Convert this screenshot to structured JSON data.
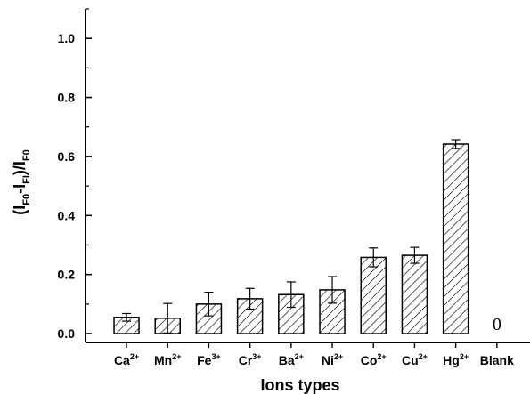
{
  "chart_data": {
    "type": "bar",
    "categories": [
      {
        "base": "Ca",
        "sup": "2+"
      },
      {
        "base": "Mn",
        "sup": "2+"
      },
      {
        "base": "Fe",
        "sup": "3+"
      },
      {
        "base": "Cr",
        "sup": "3+"
      },
      {
        "base": "Ba",
        "sup": "2+"
      },
      {
        "base": "Ni",
        "sup": "2+"
      },
      {
        "base": "Co",
        "sup": "2+"
      },
      {
        "base": "Cu",
        "sup": "2+"
      },
      {
        "base": "Hg",
        "sup": "2+"
      },
      {
        "base": "Blank",
        "sup": ""
      }
    ],
    "values": [
      0.055,
      0.052,
      0.1,
      0.118,
      0.132,
      0.148,
      0.258,
      0.265,
      0.642,
      0
    ],
    "errors": [
      0.013,
      0.05,
      0.04,
      0.035,
      0.043,
      0.045,
      0.032,
      0.027,
      0.015,
      0
    ],
    "data_labels": [
      "",
      "",
      "",
      "",
      "",
      "",
      "",
      "",
      "",
      "0"
    ],
    "xlabel": "Ions types",
    "ylabel": {
      "parts": [
        {
          "t": "(I",
          "sub": false
        },
        {
          "t": "F0",
          "sub": true
        },
        {
          "t": "-I",
          "sub": false
        },
        {
          "t": "FI",
          "sub": true
        },
        {
          "t": ")/I",
          "sub": false
        },
        {
          "t": "F0",
          "sub": true
        }
      ]
    },
    "ylim": [
      -0.03,
      1.1
    ],
    "yticks": [
      0.0,
      0.2,
      0.4,
      0.6,
      0.8,
      1.0
    ],
    "ytick_labels": [
      "0.0",
      "0.2",
      "0.4",
      "0.6",
      "0.8",
      "1.0"
    ],
    "bar_fill": "hatched",
    "bar_color": "#000000",
    "background": "#ffffff"
  }
}
